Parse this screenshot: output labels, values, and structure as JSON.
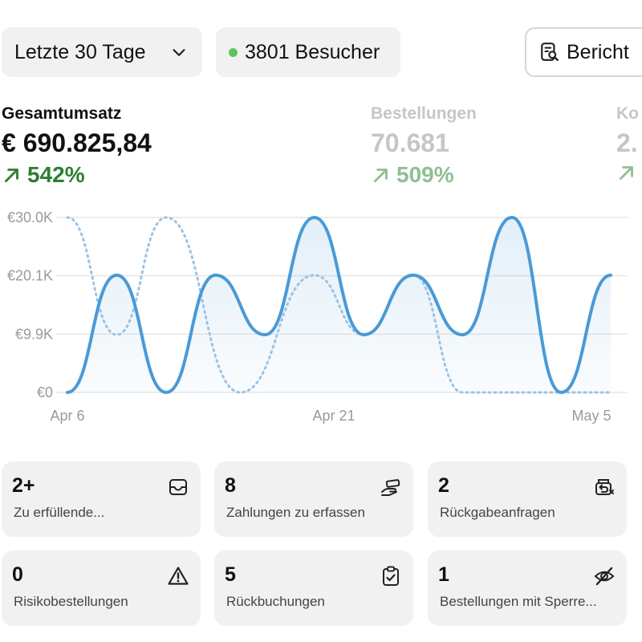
{
  "filters": {
    "range_label": "Letzte 30 Tage",
    "visitors_label": "3801 Besucher",
    "report_label": "Bericht"
  },
  "metrics": [
    {
      "label": "Gesamtumsatz",
      "value": "€ 690.825,84",
      "change": "542%"
    },
    {
      "label": "Bestellungen",
      "value": "70.681",
      "change": "509%"
    },
    {
      "label": "Ko",
      "value": "2.",
      "change": ""
    }
  ],
  "colors": {
    "accent": "#4a9ad6",
    "positive": "#2e7d32",
    "card_bg": "#f1f1f1"
  },
  "chart_data": {
    "type": "line",
    "x_tick_labels": [
      "Apr 6",
      "Apr 21",
      "May 5"
    ],
    "y_tick_labels": [
      "€30.0K",
      "€20.1K",
      "€9.9K",
      "€0"
    ],
    "ylim": [
      0,
      30000
    ],
    "grid": true,
    "series": [
      {
        "style": "solid",
        "points": [
          [
            0,
            0
          ],
          [
            2,
            20100
          ],
          [
            4,
            0
          ],
          [
            6,
            20100
          ],
          [
            8,
            9900
          ],
          [
            10,
            30000
          ],
          [
            12,
            9900
          ],
          [
            14,
            20100
          ],
          [
            16,
            9900
          ],
          [
            18,
            30000
          ],
          [
            20,
            0
          ],
          [
            22,
            20100
          ]
        ]
      },
      {
        "style": "dotted",
        "points": [
          [
            0,
            30000
          ],
          [
            2,
            9900
          ],
          [
            4,
            30000
          ],
          [
            7,
            0
          ],
          [
            10,
            20100
          ],
          [
            12,
            9900
          ],
          [
            14,
            20100
          ],
          [
            16,
            0
          ],
          [
            22,
            0
          ]
        ]
      }
    ]
  },
  "cards": [
    {
      "count": "2+",
      "label": "Zu erfüllende...",
      "icon": "inbox-icon"
    },
    {
      "count": "8",
      "label": "Zahlungen zu erfassen",
      "icon": "hand-payment-icon"
    },
    {
      "count": "2",
      "label": "Rückgabeanfragen",
      "icon": "return-box-icon"
    },
    {
      "count": "0",
      "label": "Risikobestellungen",
      "icon": "warning-icon"
    },
    {
      "count": "5",
      "label": "Rückbuchungen",
      "icon": "clipboard-check-icon"
    },
    {
      "count": "1",
      "label": "Bestellungen mit Sperre...",
      "icon": "eye-off-icon"
    }
  ]
}
